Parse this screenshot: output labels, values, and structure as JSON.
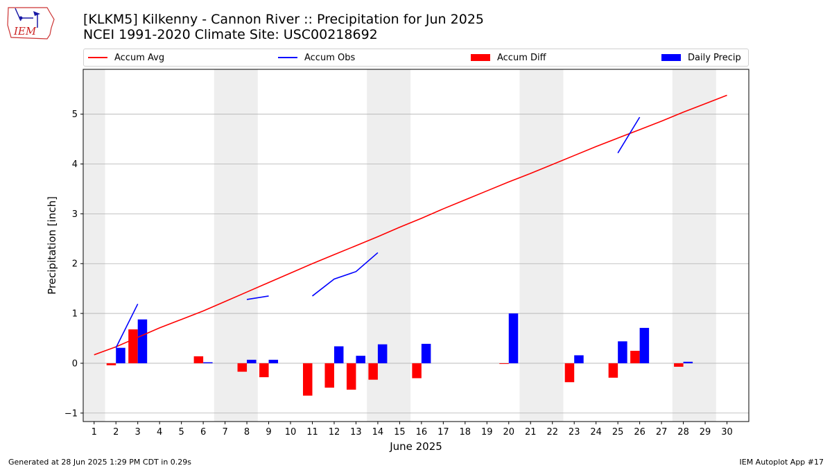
{
  "header": {
    "logo_text": "IEM",
    "title_line1": "[KLKM5] Kilkenny - Cannon River :: Precipitation for Jun 2025",
    "title_line2": "NCEI 1991-2020 Climate Site: USC00218692"
  },
  "legend": {
    "items": [
      {
        "label": "Accum Avg",
        "kind": "line",
        "color": "#ff0000"
      },
      {
        "label": "Accum Obs",
        "kind": "line",
        "color": "#0000ff"
      },
      {
        "label": "Accum Diff",
        "kind": "bar",
        "color": "#ff0000"
      },
      {
        "label": "Daily Precip",
        "kind": "bar",
        "color": "#0000ff"
      }
    ]
  },
  "footer": {
    "left": "Generated at 28 Jun 2025 1:29 PM CDT in 0.29s",
    "right": "IEM Autoplot App #17"
  },
  "chart_data": {
    "type": "bar",
    "xlabel": "June 2025",
    "ylabel": "Precipitation [inch]",
    "xlim": [
      0.5,
      31
    ],
    "ylim": [
      -1.17,
      5.9
    ],
    "yticks": [
      -1,
      0,
      1,
      2,
      3,
      4,
      5
    ],
    "xticks": [
      1,
      2,
      3,
      4,
      5,
      6,
      7,
      8,
      9,
      10,
      11,
      12,
      13,
      14,
      15,
      16,
      17,
      18,
      19,
      20,
      21,
      22,
      23,
      24,
      25,
      26,
      27,
      28,
      29,
      30
    ],
    "grid": "horizontal",
    "legend_position": "top",
    "weekend_shading": [
      [
        0.5,
        1.5
      ],
      [
        6.5,
        8.5
      ],
      [
        13.5,
        15.5
      ],
      [
        20.5,
        22.5
      ],
      [
        27.5,
        29.5
      ]
    ],
    "colors": {
      "avg": "#ff0000",
      "obs": "#0000ff",
      "diff": "#ff0000",
      "daily": "#0000ff",
      "shade": "#eeeeee",
      "grid": "#b0b0b0"
    },
    "accum_avg": {
      "x": [
        1,
        2,
        3,
        4,
        5,
        6,
        7,
        8,
        9,
        10,
        11,
        12,
        13,
        14,
        15,
        16,
        17,
        18,
        19,
        20,
        21,
        22,
        23,
        24,
        25,
        26,
        27,
        28,
        29,
        30
      ],
      "y": [
        0.17,
        0.33,
        0.52,
        0.71,
        0.88,
        1.05,
        1.24,
        1.43,
        1.62,
        1.81,
        2.0,
        2.18,
        2.36,
        2.54,
        2.73,
        2.91,
        3.1,
        3.28,
        3.46,
        3.64,
        3.81,
        3.99,
        4.17,
        4.35,
        4.52,
        4.69,
        4.86,
        5.04,
        5.21,
        5.38
      ]
    },
    "accum_obs": [
      {
        "x": [
          2,
          3
        ],
        "y": [
          0.31,
          1.19
        ]
      },
      {
        "x": [
          8,
          9
        ],
        "y": [
          1.28,
          1.35
        ]
      },
      {
        "x": [
          11,
          12,
          13,
          14
        ],
        "y": [
          1.35,
          1.69,
          1.84,
          2.22
        ]
      },
      {
        "x": [
          25,
          26
        ],
        "y": [
          4.22,
          4.94
        ]
      }
    ],
    "series": [
      {
        "name": "Accum Diff",
        "x": [
          2,
          3,
          6,
          8,
          9,
          11,
          12,
          13,
          14,
          16,
          20,
          23,
          25,
          26,
          28
        ],
        "values": [
          -0.04,
          0.68,
          0.14,
          -0.17,
          -0.28,
          -0.65,
          -0.49,
          -0.53,
          -0.33,
          -0.3,
          -0.01,
          -0.38,
          -0.29,
          0.25,
          -0.07
        ]
      },
      {
        "name": "Daily Precip",
        "x": [
          2,
          3,
          6,
          8,
          9,
          12,
          13,
          14,
          16,
          20,
          23,
          25,
          26,
          28
        ],
        "values": [
          0.31,
          0.88,
          0.02,
          0.07,
          0.07,
          0.34,
          0.15,
          0.38,
          0.39,
          1.0,
          0.16,
          0.44,
          0.71,
          0.03
        ]
      }
    ]
  }
}
